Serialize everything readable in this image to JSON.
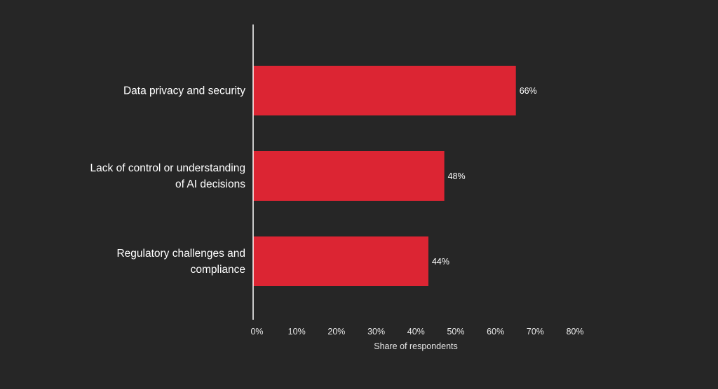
{
  "chart_data": {
    "type": "bar",
    "orientation": "horizontal",
    "title": "",
    "categories": [
      [
        "Data privacy and security"
      ],
      [
        "Lack of control or understanding",
        "of AI decisions"
      ],
      [
        "Regulatory challenges and",
        "compliance"
      ]
    ],
    "values": [
      66,
      48,
      44
    ],
    "data_labels": [
      "66%",
      "48%",
      "44%"
    ],
    "xlabel": "Share of respondents",
    "ylabel": "",
    "xlim": [
      0,
      80
    ],
    "xticks": [
      0,
      10,
      20,
      30,
      40,
      50,
      60,
      70,
      80
    ],
    "xtick_labels": [
      "0%",
      "10%",
      "20%",
      "30%",
      "40%",
      "50%",
      "60%",
      "70%",
      "80%"
    ],
    "grid": false,
    "legend": "none",
    "colors": {
      "bar": "#dc2533",
      "background": "#262626",
      "text": "#ffffff"
    }
  }
}
